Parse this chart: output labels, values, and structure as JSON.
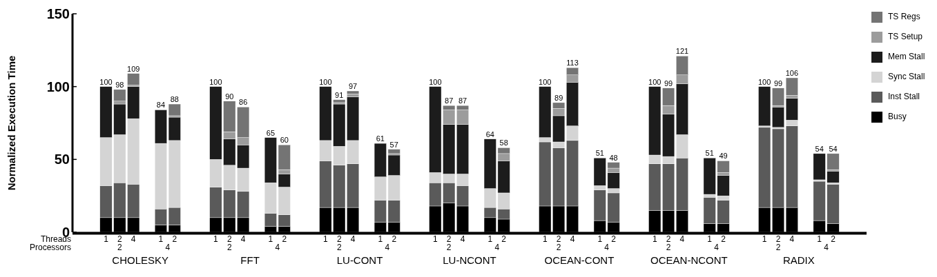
{
  "chart_data": {
    "type": "bar",
    "stacked": true,
    "ylabel": "Normalized Execution Time",
    "ylim": [
      0,
      150
    ],
    "yticks": [
      0,
      50,
      100,
      150
    ],
    "legend": "right",
    "grid": false,
    "categories": [
      null,
      null,
      "1",
      "2",
      "4",
      null,
      "1",
      "2",
      null,
      null,
      "1",
      "2",
      "4",
      null,
      "1",
      "2",
      null,
      null,
      "1",
      "2",
      "4",
      null,
      "1",
      "2",
      null,
      null,
      "1",
      "2",
      "4",
      null,
      "1",
      "2",
      null,
      null,
      "1",
      "2",
      "4",
      null,
      "1",
      "2",
      null,
      null,
      "1",
      "2",
      "4",
      null,
      "1",
      "2",
      null,
      null,
      "1",
      "2",
      "4",
      null,
      "1",
      "2",
      null,
      null
    ],
    "annotations": [
      "Threads",
      "Processors",
      "2",
      "4",
      "2",
      "4",
      "2",
      "4",
      "2",
      "4",
      "2",
      "4",
      "2",
      "4",
      "2",
      "4",
      "CHOLESKY",
      "FFT",
      "LU-CONT",
      "LU-NCONT",
      "OCEAN-CONT",
      "OCEAN-NCONT",
      "RADIX"
    ],
    "series": [
      {
        "name": "Busy",
        "color": "#000000",
        "values": [
          null,
          null,
          10,
          10,
          10,
          null,
          5,
          5,
          null,
          null,
          10,
          10,
          10,
          null,
          4,
          4,
          null,
          null,
          17,
          17,
          17,
          null,
          7,
          7,
          null,
          null,
          18,
          20,
          18,
          null,
          10,
          9,
          null,
          null,
          18,
          18,
          18,
          null,
          8,
          7,
          null,
          null,
          15,
          15,
          15,
          null,
          6,
          6,
          null,
          null,
          17,
          17,
          17,
          null,
          8,
          6,
          null,
          null
        ]
      },
      {
        "name": "Inst Stall",
        "color": "#5a5a5a",
        "values": [
          null,
          null,
          22,
          24,
          23,
          null,
          11,
          12,
          null,
          null,
          21,
          19,
          18,
          null,
          9,
          8,
          null,
          null,
          32,
          29,
          30,
          null,
          15,
          15,
          null,
          null,
          16,
          14,
          14,
          null,
          7,
          7,
          null,
          null,
          44,
          40,
          45,
          null,
          21,
          20,
          null,
          null,
          32,
          32,
          36,
          null,
          18,
          16,
          null,
          null,
          55,
          54,
          56,
          null,
          27,
          27,
          null,
          null
        ]
      },
      {
        "name": "Sync Stall",
        "color": "#d4d4d4",
        "values": [
          null,
          null,
          33,
          33,
          45,
          null,
          45,
          46,
          null,
          null,
          19,
          17,
          16,
          null,
          21,
          19,
          null,
          null,
          14,
          13,
          16,
          null,
          16,
          17,
          null,
          null,
          7,
          6,
          8,
          null,
          13,
          11,
          null,
          null,
          3,
          4,
          10,
          null,
          3,
          3,
          null,
          null,
          6,
          5,
          16,
          null,
          2,
          3,
          null,
          null,
          1,
          1,
          4,
          null,
          1,
          1,
          null,
          null
        ]
      },
      {
        "name": "Mem Stall",
        "color": "#1c1c1c",
        "values": [
          null,
          null,
          35,
          21,
          22,
          null,
          23,
          16,
          null,
          null,
          50,
          18,
          16,
          null,
          31,
          9,
          null,
          null,
          37,
          29,
          30,
          null,
          23,
          14,
          null,
          null,
          59,
          34,
          34,
          null,
          34,
          22,
          null,
          null,
          35,
          18,
          30,
          null,
          19,
          11,
          null,
          null,
          47,
          29,
          35,
          null,
          25,
          14,
          null,
          null,
          27,
          14,
          15,
          null,
          18,
          8,
          null,
          null
        ]
      },
      {
        "name": "TS Setup",
        "color": "#9c9c9c",
        "values": [
          null,
          null,
          null,
          2,
          1,
          null,
          null,
          1,
          null,
          null,
          null,
          5,
          5,
          null,
          null,
          3,
          null,
          null,
          null,
          1,
          2,
          null,
          null,
          1,
          null,
          null,
          null,
          10,
          10,
          null,
          null,
          5,
          null,
          null,
          null,
          5,
          5,
          null,
          null,
          3,
          null,
          null,
          null,
          6,
          6,
          null,
          null,
          2,
          null,
          null,
          null,
          1,
          2,
          null,
          null,
          1,
          null,
          null
        ]
      },
      {
        "name": "TS Regs",
        "color": "#747474",
        "values": [
          null,
          null,
          null,
          8,
          8,
          null,
          null,
          8,
          null,
          null,
          null,
          21,
          21,
          null,
          null,
          17,
          null,
          null,
          null,
          2,
          2,
          null,
          null,
          3,
          null,
          null,
          null,
          3,
          3,
          null,
          null,
          4,
          null,
          null,
          null,
          4,
          5,
          null,
          null,
          4,
          null,
          null,
          null,
          12,
          13,
          null,
          null,
          8,
          null,
          null,
          null,
          12,
          12,
          null,
          null,
          11,
          null,
          null
        ]
      }
    ],
    "totals": [
      null,
      null,
      "100",
      "98",
      "109",
      null,
      "84",
      "88",
      null,
      null,
      "100",
      "90",
      "86",
      null,
      "65",
      "60",
      null,
      null,
      "100",
      "91",
      "97",
      null,
      "61",
      "57",
      null,
      null,
      "100",
      "87",
      "87",
      null,
      "64",
      "58",
      null,
      null,
      "100",
      "89",
      "113",
      null,
      "51",
      "48",
      null,
      null,
      "100",
      "99",
      "121",
      null,
      "51",
      "49",
      null,
      null,
      "100",
      "99",
      "106",
      null,
      "54",
      "54",
      null,
      null
    ]
  }
}
